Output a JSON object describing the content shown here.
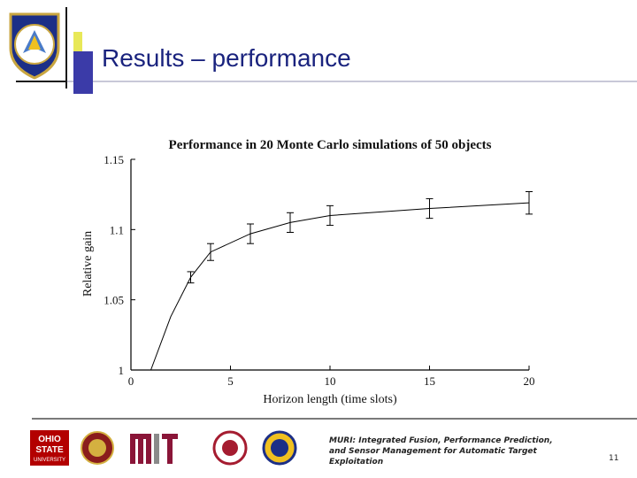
{
  "slide": {
    "title": "Results – performance",
    "footer_text": "MURI: Integrated Fusion, Performance Prediction, and Sensor Management for Automatic Target Exploitation",
    "page_number": "11",
    "logo_texts": {
      "ohio_state_line1": "OHIO",
      "ohio_state_line2": "STATE",
      "ohio_state_line3": "UNIVERSITY"
    },
    "colors": {
      "title": "#1a237e",
      "accent_blue": "#3b3ba8",
      "accent_yellow": "#e8e858"
    }
  },
  "chart_data": {
    "type": "line",
    "title": "Performance in 20 Monte Carlo simulations of 50 objects",
    "xlabel": "Horizon length (time slots)",
    "ylabel": "Relative gain",
    "xlim": [
      0,
      20
    ],
    "ylim": [
      1,
      1.15
    ],
    "xticks": [
      0,
      5,
      10,
      15,
      20
    ],
    "yticks": [
      1,
      1.05,
      1.1,
      1.15
    ],
    "xtick_labels": [
      "0",
      "5",
      "10",
      "15",
      "20"
    ],
    "ytick_labels": [
      "1",
      "1.05",
      "1.1",
      "1.15"
    ],
    "series": [
      {
        "name": "Relative gain",
        "x": [
          1,
          2,
          3,
          4,
          6,
          8,
          10,
          15,
          20
        ],
        "y": [
          1.0,
          1.038,
          1.066,
          1.084,
          1.097,
          1.105,
          1.11,
          1.115,
          1.119
        ],
        "err": [
          0,
          0,
          0.004,
          0.006,
          0.007,
          0.007,
          0.007,
          0.007,
          0.008
        ]
      }
    ]
  }
}
